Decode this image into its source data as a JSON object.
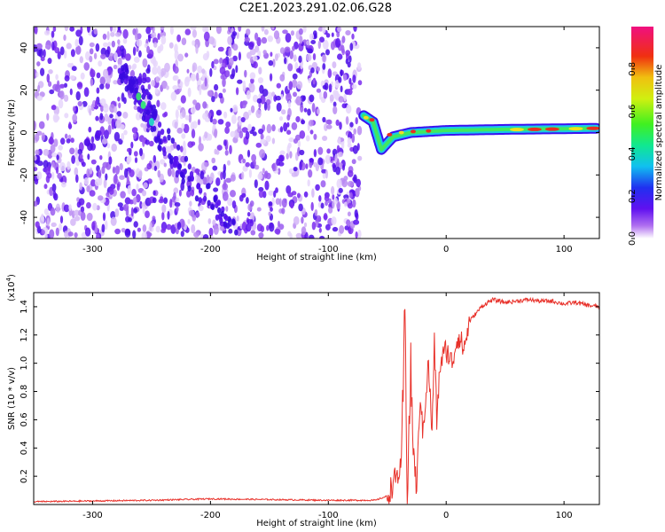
{
  "title": "C2E1.2023.291.02.06.G28",
  "chart_data": [
    {
      "type": "heatmap",
      "xlabel": "Height of straight line (km)",
      "ylabel": "Frequency (Hz)",
      "xlim": [
        -350,
        130
      ],
      "ylim": [
        -50,
        50
      ],
      "xticks": [
        -300,
        -200,
        -100,
        0,
        100
      ],
      "yticks": [
        -40,
        -20,
        0,
        20,
        40
      ],
      "colorbar": {
        "label": "Normalized spectral amplitude",
        "range": [
          0.0,
          1.0
        ],
        "ticks": [
          0.0,
          0.2,
          0.4,
          0.6,
          0.8
        ],
        "colormap": "rainbow (white-purple-blue-cyan-green-yellow-red-magenta)"
      },
      "features": [
        {
          "name": "noise field",
          "x_range": [
            -350,
            -73
          ],
          "y_range": [
            -50,
            50
          ]
        },
        {
          "name": "diagonal ridge",
          "points": [
            [
              -275,
              30
            ],
            [
              -260,
              18
            ],
            [
              -250,
              5
            ],
            [
              -220,
              -20
            ],
            [
              -180,
              -45
            ]
          ]
        },
        {
          "name": "tone",
          "points": [
            [
              -70,
              8
            ],
            [
              -62,
              5
            ],
            [
              -55,
              -8
            ],
            [
              -45,
              -2
            ],
            [
              -30,
              0
            ],
            [
              0,
              1
            ],
            [
              50,
              1.5
            ],
            [
              130,
              2
            ]
          ]
        }
      ]
    },
    {
      "type": "line",
      "xlabel": "Height of straight line (km)",
      "ylabel": "SNR (10 * v/v)",
      "yscale_label": "(x10",
      "yscale_exp": "4",
      "yscale_close": ")",
      "xlim": [
        -350,
        130
      ],
      "ylim": [
        0,
        1.5
      ],
      "xticks": [
        -300,
        -200,
        -100,
        0,
        100
      ],
      "yticks": [
        0.2,
        0.4,
        0.6,
        0.8,
        1.0,
        1.2,
        1.4
      ],
      "series_color": "#e8312a",
      "series": [
        {
          "x": [
            -350,
            -300,
            -250,
            -200,
            -150,
            -100,
            -60,
            -50,
            -45,
            -42,
            -38,
            -35,
            -33,
            -30,
            -28,
            -25,
            -22,
            -20,
            -15,
            -12,
            -10,
            -8,
            -5,
            0,
            5,
            10,
            15,
            20,
            25,
            30,
            35,
            40,
            50,
            60,
            70,
            80,
            90,
            100,
            110,
            120,
            130
          ],
          "y": [
            0.02,
            0.025,
            0.03,
            0.04,
            0.035,
            0.03,
            0.03,
            0.06,
            0.15,
            0.2,
            0.25,
            1.38,
            0.1,
            0.95,
            0.4,
            0.1,
            0.8,
            0.5,
            1.0,
            0.5,
            1.15,
            0.6,
            1.0,
            1.1,
            1.0,
            1.2,
            1.1,
            1.3,
            1.35,
            1.4,
            1.43,
            1.45,
            1.43,
            1.44,
            1.45,
            1.44,
            1.44,
            1.42,
            1.43,
            1.41,
            1.4
          ]
        }
      ]
    }
  ]
}
